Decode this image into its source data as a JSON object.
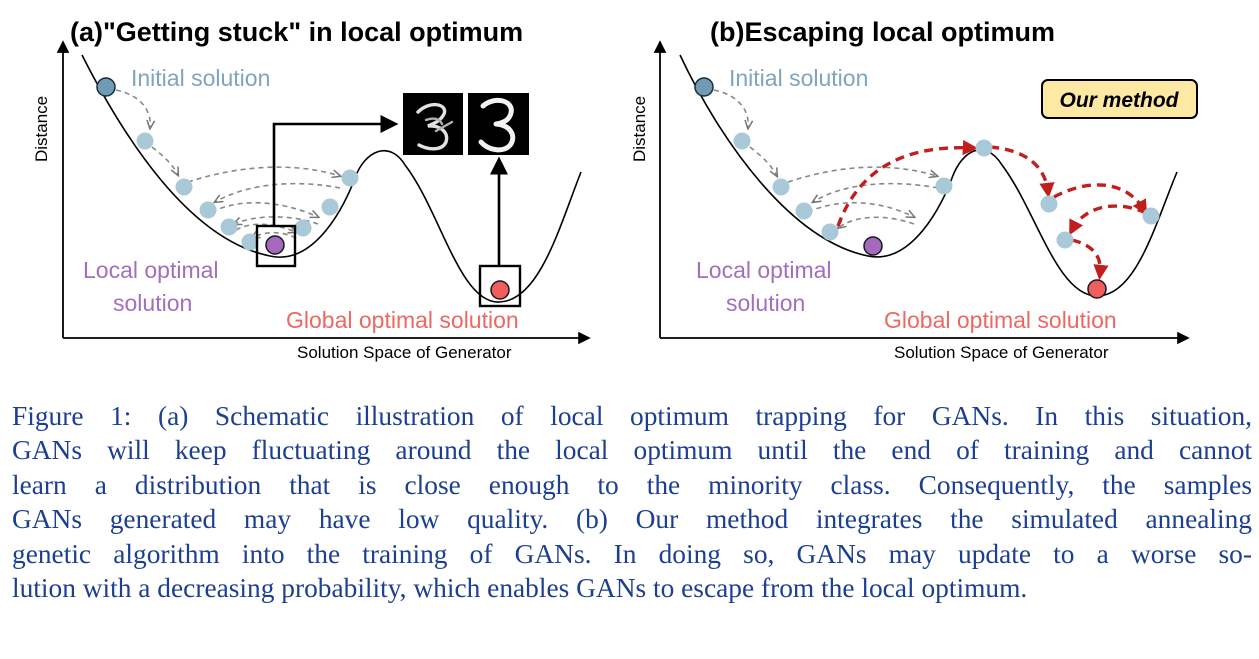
{
  "panel_a": {
    "title": "(a)\"Getting stuck\" in local optimum",
    "y_axis_label": "Distance",
    "x_axis_label": "Solution Space of Generator",
    "initial_label": "Initial solution",
    "local_label_line1": "Local optimal",
    "local_label_line2": "solution",
    "global_label": "Global optimal solution"
  },
  "panel_b": {
    "title": "(b)Escaping local optimum",
    "y_axis_label": "Distance",
    "x_axis_label": "Solution Space of Generator",
    "initial_label": "Initial solution",
    "badge": "Our method",
    "local_label_line1": "Local optimal",
    "local_label_line2": "solution",
    "global_label": "Global optimal solution"
  },
  "colors": {
    "initial_dot": "#6f9bb4",
    "step_dot": "#a9c9d8",
    "local_dot": "#a469bf",
    "global_dot": "#ef5e5b",
    "initial_text": "#7fa4bd",
    "local_text": "#a16fbf",
    "global_text": "#ee6761",
    "escape_arrow": "#c21e1e",
    "badge_fill": "#fde8a4",
    "caption_text": "#1d3f91"
  },
  "caption": {
    "line1": "Figure 1: (a) Schematic illustration of local optimum trapping for GANs. In this situation,",
    "line2": "GANs will keep fluctuating around the local optimum until the end of training and cannot",
    "line3": "learn a distribution that is close enough to the minority class. Consequently, the samples",
    "line4": "GANs generated may have low quality. (b) Our method integrates the simulated annealing",
    "line5": "genetic algorithm into the training of GANs. In doing so, GANs may update to a worse so-",
    "line6": "lution with a decreasing probability, which enables GANs to escape from the local optimum."
  }
}
